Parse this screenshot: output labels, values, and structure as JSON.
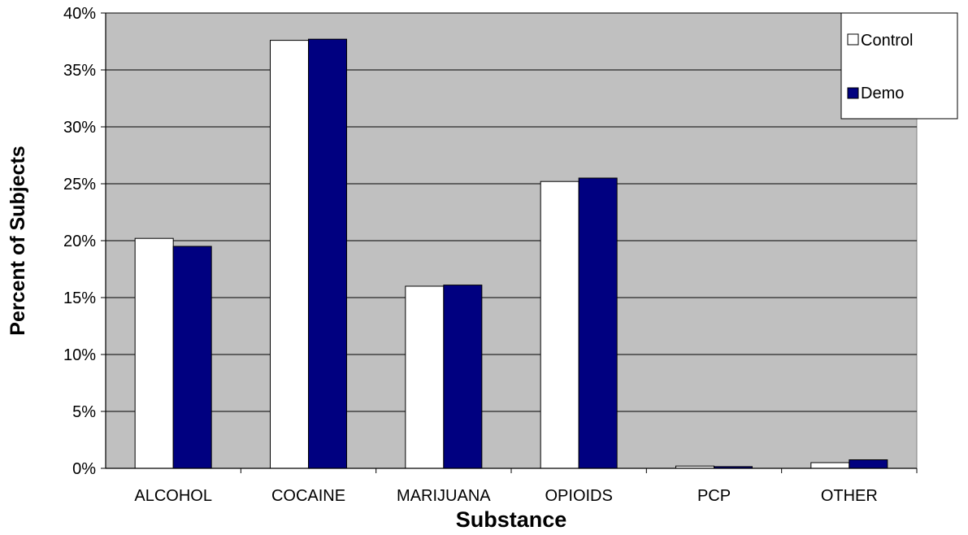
{
  "chart_data": {
    "type": "bar",
    "categories": [
      "ALCOHOL",
      "COCAINE",
      "MARIJUANA",
      "OPIOIDS",
      "PCP",
      "OTHER"
    ],
    "series": [
      {
        "name": "Control",
        "values": [
          20.2,
          37.6,
          16.0,
          25.2,
          0.2,
          0.5
        ],
        "color": "#ffffff"
      },
      {
        "name": "Demo",
        "values": [
          19.5,
          37.7,
          16.1,
          25.5,
          0.15,
          0.75
        ],
        "color": "#000080"
      }
    ],
    "xlabel": "Substance",
    "ylabel": "Percent of Subjects",
    "ylim": [
      0,
      40
    ],
    "yticks": [
      "0%",
      "5%",
      "10%",
      "15%",
      "20%",
      "25%",
      "30%",
      "35%",
      "40%"
    ],
    "grid": true,
    "plot_background": "#c0c0c0",
    "legend_position": "top-right"
  }
}
